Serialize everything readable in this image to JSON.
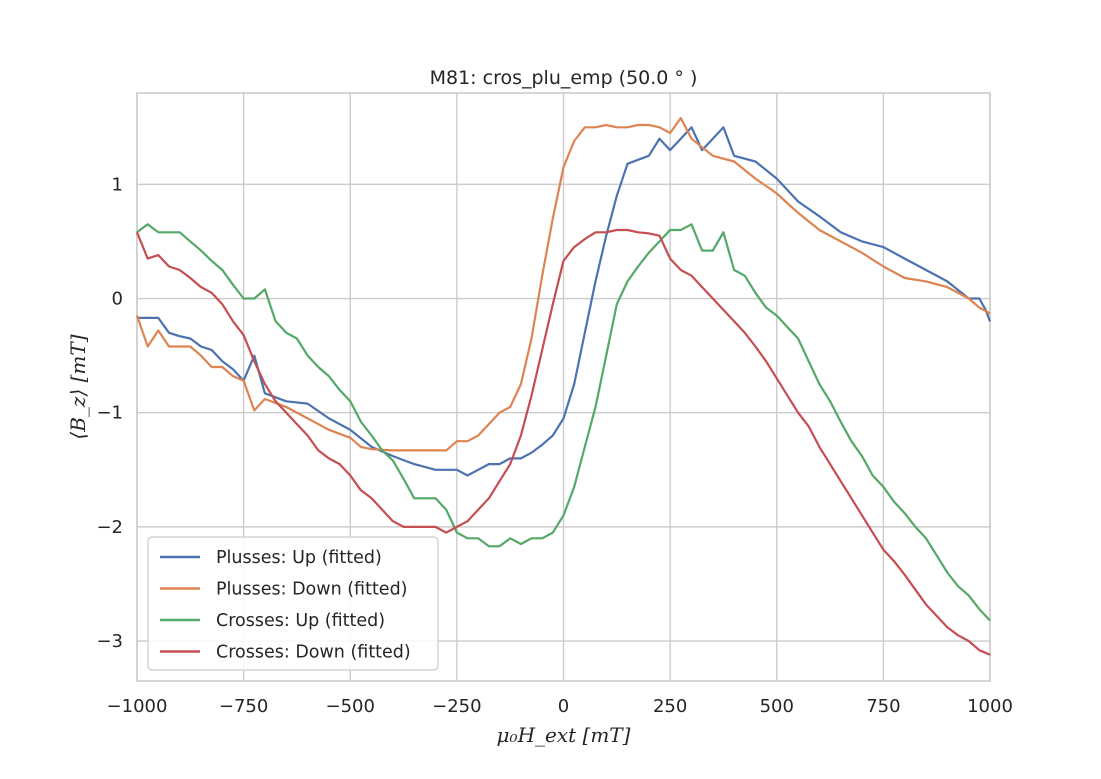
{
  "chart_data": {
    "type": "line",
    "title": "M81: cros_plu_emp (50.0$^\\circ$)",
    "title_display": "M81: cros_plu_emp (50.0 ° )",
    "xlabel": "μ₀H_ext [mT]",
    "ylabel": "⟨B_z⟩ [mT]",
    "xlim": [
      -1000,
      1000
    ],
    "ylim": [
      -3.35,
      1.8
    ],
    "xticks": [
      -1000,
      -750,
      -500,
      -250,
      0,
      250,
      500,
      750,
      1000
    ],
    "xtick_labels": [
      "−1000",
      "−750",
      "−500",
      "−250",
      "0",
      "250",
      "500",
      "750",
      "1000"
    ],
    "yticks": [
      -3,
      -2,
      -1,
      0,
      1
    ],
    "ytick_labels": [
      "−3",
      "−2",
      "−1",
      "0",
      "1"
    ],
    "grid": true,
    "legend_position": "lower-left",
    "series": [
      {
        "name": "Plusses: Up (fitted)",
        "color": "#4c72b0",
        "points": [
          [
            -1000,
            -0.17
          ],
          [
            -950,
            -0.17
          ],
          [
            -925,
            -0.3
          ],
          [
            -900,
            -0.33
          ],
          [
            -875,
            -0.35
          ],
          [
            -850,
            -0.42
          ],
          [
            -825,
            -0.45
          ],
          [
            -800,
            -0.55
          ],
          [
            -775,
            -0.62
          ],
          [
            -750,
            -0.72
          ],
          [
            -725,
            -0.5
          ],
          [
            -700,
            -0.83
          ],
          [
            -650,
            -0.9
          ],
          [
            -600,
            -0.92
          ],
          [
            -550,
            -1.05
          ],
          [
            -500,
            -1.15
          ],
          [
            -450,
            -1.3
          ],
          [
            -400,
            -1.38
          ],
          [
            -350,
            -1.45
          ],
          [
            -300,
            -1.5
          ],
          [
            -250,
            -1.5
          ],
          [
            -225,
            -1.55
          ],
          [
            -200,
            -1.5
          ],
          [
            -175,
            -1.45
          ],
          [
            -150,
            -1.45
          ],
          [
            -125,
            -1.4
          ],
          [
            -100,
            -1.4
          ],
          [
            -75,
            -1.35
          ],
          [
            -50,
            -1.28
          ],
          [
            -25,
            -1.2
          ],
          [
            0,
            -1.05
          ],
          [
            25,
            -0.75
          ],
          [
            50,
            -0.3
          ],
          [
            75,
            0.15
          ],
          [
            100,
            0.55
          ],
          [
            125,
            0.9
          ],
          [
            150,
            1.18
          ],
          [
            200,
            1.25
          ],
          [
            225,
            1.4
          ],
          [
            250,
            1.3
          ],
          [
            275,
            1.4
          ],
          [
            300,
            1.5
          ],
          [
            325,
            1.3
          ],
          [
            350,
            1.4
          ],
          [
            375,
            1.5
          ],
          [
            400,
            1.25
          ],
          [
            450,
            1.2
          ],
          [
            500,
            1.05
          ],
          [
            550,
            0.85
          ],
          [
            600,
            0.72
          ],
          [
            650,
            0.58
          ],
          [
            700,
            0.5
          ],
          [
            750,
            0.45
          ],
          [
            800,
            0.35
          ],
          [
            850,
            0.25
          ],
          [
            900,
            0.15
          ],
          [
            950,
            0.0
          ],
          [
            975,
            0.0
          ],
          [
            990,
            -0.1
          ],
          [
            1000,
            -0.2
          ]
        ]
      },
      {
        "name": "Plusses: Down (fitted)",
        "color": "#dd8452",
        "points": [
          [
            -1000,
            -0.15
          ],
          [
            -975,
            -0.42
          ],
          [
            -950,
            -0.28
          ],
          [
            -925,
            -0.42
          ],
          [
            -875,
            -0.42
          ],
          [
            -850,
            -0.5
          ],
          [
            -825,
            -0.6
          ],
          [
            -800,
            -0.6
          ],
          [
            -775,
            -0.68
          ],
          [
            -750,
            -0.72
          ],
          [
            -725,
            -0.98
          ],
          [
            -700,
            -0.88
          ],
          [
            -650,
            -0.95
          ],
          [
            -600,
            -1.05
          ],
          [
            -550,
            -1.15
          ],
          [
            -500,
            -1.22
          ],
          [
            -475,
            -1.3
          ],
          [
            -450,
            -1.32
          ],
          [
            -400,
            -1.33
          ],
          [
            -350,
            -1.33
          ],
          [
            -300,
            -1.33
          ],
          [
            -275,
            -1.33
          ],
          [
            -250,
            -1.25
          ],
          [
            -225,
            -1.25
          ],
          [
            -200,
            -1.2
          ],
          [
            -175,
            -1.1
          ],
          [
            -150,
            -1.0
          ],
          [
            -125,
            -0.95
          ],
          [
            -100,
            -0.75
          ],
          [
            -75,
            -0.35
          ],
          [
            -50,
            0.2
          ],
          [
            -25,
            0.7
          ],
          [
            0,
            1.15
          ],
          [
            25,
            1.38
          ],
          [
            50,
            1.5
          ],
          [
            75,
            1.5
          ],
          [
            100,
            1.52
          ],
          [
            125,
            1.5
          ],
          [
            150,
            1.5
          ],
          [
            175,
            1.52
          ],
          [
            200,
            1.52
          ],
          [
            225,
            1.5
          ],
          [
            250,
            1.45
          ],
          [
            275,
            1.58
          ],
          [
            300,
            1.4
          ],
          [
            350,
            1.25
          ],
          [
            400,
            1.2
          ],
          [
            450,
            1.05
          ],
          [
            500,
            0.92
          ],
          [
            550,
            0.75
          ],
          [
            600,
            0.6
          ],
          [
            650,
            0.5
          ],
          [
            700,
            0.4
          ],
          [
            750,
            0.28
          ],
          [
            800,
            0.18
          ],
          [
            850,
            0.15
          ],
          [
            900,
            0.1
          ],
          [
            950,
            0.0
          ],
          [
            975,
            -0.08
          ],
          [
            1000,
            -0.13
          ]
        ]
      },
      {
        "name": "Crosses: Up (fitted)",
        "color": "#55a868",
        "points": [
          [
            -1000,
            0.58
          ],
          [
            -975,
            0.65
          ],
          [
            -950,
            0.58
          ],
          [
            -900,
            0.58
          ],
          [
            -875,
            0.5
          ],
          [
            -850,
            0.42
          ],
          [
            -825,
            0.33
          ],
          [
            -800,
            0.25
          ],
          [
            -775,
            0.12
          ],
          [
            -750,
            0.0
          ],
          [
            -725,
            0.0
          ],
          [
            -700,
            0.08
          ],
          [
            -675,
            -0.2
          ],
          [
            -650,
            -0.3
          ],
          [
            -625,
            -0.35
          ],
          [
            -600,
            -0.5
          ],
          [
            -575,
            -0.6
          ],
          [
            -550,
            -0.68
          ],
          [
            -525,
            -0.8
          ],
          [
            -500,
            -0.9
          ],
          [
            -475,
            -1.08
          ],
          [
            -450,
            -1.2
          ],
          [
            -425,
            -1.33
          ],
          [
            -400,
            -1.42
          ],
          [
            -375,
            -1.58
          ],
          [
            -350,
            -1.75
          ],
          [
            -325,
            -1.75
          ],
          [
            -300,
            -1.75
          ],
          [
            -275,
            -1.85
          ],
          [
            -250,
            -2.05
          ],
          [
            -225,
            -2.1
          ],
          [
            -200,
            -2.1
          ],
          [
            -175,
            -2.17
          ],
          [
            -150,
            -2.17
          ],
          [
            -125,
            -2.1
          ],
          [
            -100,
            -2.15
          ],
          [
            -75,
            -2.1
          ],
          [
            -50,
            -2.1
          ],
          [
            -25,
            -2.05
          ],
          [
            0,
            -1.9
          ],
          [
            25,
            -1.65
          ],
          [
            50,
            -1.3
          ],
          [
            75,
            -0.95
          ],
          [
            100,
            -0.5
          ],
          [
            125,
            -0.05
          ],
          [
            150,
            0.15
          ],
          [
            175,
            0.28
          ],
          [
            200,
            0.4
          ],
          [
            225,
            0.5
          ],
          [
            250,
            0.6
          ],
          [
            275,
            0.6
          ],
          [
            300,
            0.65
          ],
          [
            325,
            0.42
          ],
          [
            350,
            0.42
          ],
          [
            375,
            0.58
          ],
          [
            400,
            0.25
          ],
          [
            425,
            0.2
          ],
          [
            450,
            0.05
          ],
          [
            475,
            -0.08
          ],
          [
            500,
            -0.15
          ],
          [
            525,
            -0.25
          ],
          [
            550,
            -0.35
          ],
          [
            575,
            -0.55
          ],
          [
            600,
            -0.75
          ],
          [
            625,
            -0.9
          ],
          [
            650,
            -1.08
          ],
          [
            675,
            -1.25
          ],
          [
            700,
            -1.38
          ],
          [
            725,
            -1.55
          ],
          [
            750,
            -1.65
          ],
          [
            775,
            -1.78
          ],
          [
            800,
            -1.88
          ],
          [
            825,
            -2.0
          ],
          [
            850,
            -2.1
          ],
          [
            875,
            -2.25
          ],
          [
            900,
            -2.4
          ],
          [
            925,
            -2.52
          ],
          [
            950,
            -2.6
          ],
          [
            975,
            -2.72
          ],
          [
            1000,
            -2.82
          ]
        ]
      },
      {
        "name": "Crosses: Down (fitted)",
        "color": "#c44e52",
        "points": [
          [
            -1000,
            0.58
          ],
          [
            -975,
            0.35
          ],
          [
            -950,
            0.38
          ],
          [
            -925,
            0.28
          ],
          [
            -900,
            0.25
          ],
          [
            -875,
            0.18
          ],
          [
            -850,
            0.1
          ],
          [
            -825,
            0.05
          ],
          [
            -800,
            -0.05
          ],
          [
            -775,
            -0.2
          ],
          [
            -750,
            -0.32
          ],
          [
            -725,
            -0.55
          ],
          [
            -700,
            -0.75
          ],
          [
            -675,
            -0.9
          ],
          [
            -650,
            -1.0
          ],
          [
            -625,
            -1.1
          ],
          [
            -600,
            -1.2
          ],
          [
            -575,
            -1.33
          ],
          [
            -550,
            -1.4
          ],
          [
            -525,
            -1.45
          ],
          [
            -500,
            -1.55
          ],
          [
            -475,
            -1.68
          ],
          [
            -450,
            -1.75
          ],
          [
            -425,
            -1.85
          ],
          [
            -400,
            -1.95
          ],
          [
            -375,
            -2.0
          ],
          [
            -350,
            -2.0
          ],
          [
            -325,
            -2.0
          ],
          [
            -300,
            -2.0
          ],
          [
            -275,
            -2.05
          ],
          [
            -250,
            -2.0
          ],
          [
            -225,
            -1.95
          ],
          [
            -200,
            -1.85
          ],
          [
            -175,
            -1.75
          ],
          [
            -150,
            -1.6
          ],
          [
            -125,
            -1.45
          ],
          [
            -100,
            -1.2
          ],
          [
            -75,
            -0.85
          ],
          [
            -50,
            -0.45
          ],
          [
            -25,
            -0.05
          ],
          [
            0,
            0.33
          ],
          [
            25,
            0.45
          ],
          [
            50,
            0.52
          ],
          [
            75,
            0.58
          ],
          [
            100,
            0.58
          ],
          [
            125,
            0.6
          ],
          [
            150,
            0.6
          ],
          [
            175,
            0.58
          ],
          [
            200,
            0.57
          ],
          [
            225,
            0.55
          ],
          [
            250,
            0.35
          ],
          [
            275,
            0.25
          ],
          [
            300,
            0.2
          ],
          [
            325,
            0.1
          ],
          [
            350,
            0.0
          ],
          [
            375,
            -0.1
          ],
          [
            400,
            -0.2
          ],
          [
            425,
            -0.3
          ],
          [
            450,
            -0.42
          ],
          [
            475,
            -0.55
          ],
          [
            500,
            -0.7
          ],
          [
            525,
            -0.85
          ],
          [
            550,
            -1.0
          ],
          [
            575,
            -1.12
          ],
          [
            600,
            -1.3
          ],
          [
            625,
            -1.45
          ],
          [
            650,
            -1.6
          ],
          [
            675,
            -1.75
          ],
          [
            700,
            -1.9
          ],
          [
            725,
            -2.05
          ],
          [
            750,
            -2.2
          ],
          [
            775,
            -2.3
          ],
          [
            800,
            -2.42
          ],
          [
            825,
            -2.55
          ],
          [
            850,
            -2.68
          ],
          [
            875,
            -2.78
          ],
          [
            900,
            -2.88
          ],
          [
            925,
            -2.95
          ],
          [
            950,
            -3.0
          ],
          [
            975,
            -3.08
          ],
          [
            1000,
            -3.12
          ]
        ]
      }
    ]
  }
}
